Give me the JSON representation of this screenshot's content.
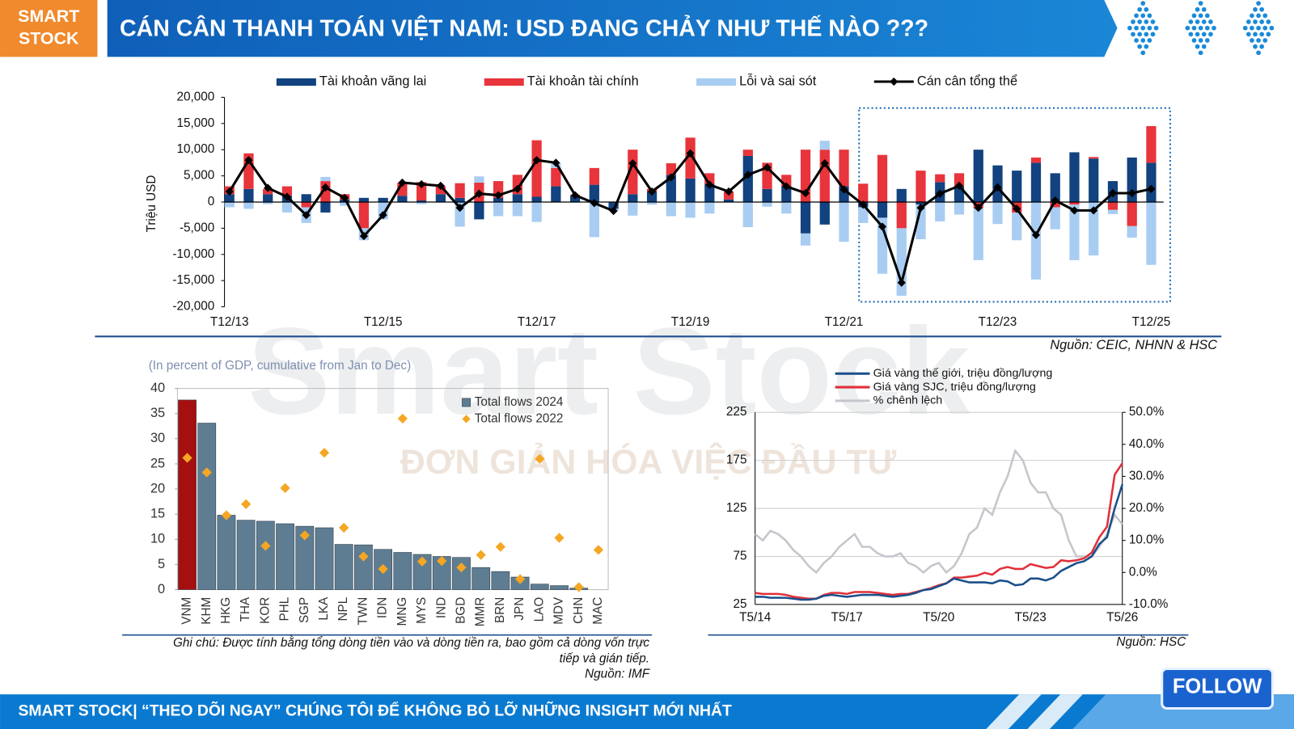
{
  "header": {
    "logo": [
      "SMART",
      "STOCK"
    ],
    "title": "CÁN CÂN THANH TOÁN VIỆT NAM: USD ĐANG CHẢY NHƯ THẾ NÀO ???"
  },
  "watermark": {
    "brand": "Smart Stock",
    "slogan": "ĐƠN GIẢN HÓA VIỆC ĐẦU TƯ"
  },
  "chart_data": [
    {
      "type": "bar",
      "stacked": true,
      "legend": "top",
      "y_label": "Triệu USD",
      "source": "Nguồn: CEIC, NHNN & HSC",
      "categories": [
        "T12/13",
        null,
        null,
        null,
        null,
        null,
        null,
        null,
        "T12/15",
        null,
        null,
        null,
        null,
        null,
        null,
        null,
        "T12/17",
        null,
        null,
        null,
        null,
        null,
        null,
        null,
        "T12/19",
        null,
        null,
        null,
        null,
        null,
        null,
        null,
        "T12/21",
        null,
        null,
        null,
        null,
        null,
        null,
        null,
        "T12/23",
        null,
        null,
        null,
        null,
        null,
        null,
        null,
        "T12/25"
      ],
      "ylim": [
        -20000,
        20000
      ],
      "yticks": [
        {
          "value": -20000,
          "label": "-20,000"
        },
        {
          "value": -15000,
          "label": "-15,000"
        },
        {
          "value": -10000,
          "label": "-10,000"
        },
        {
          "value": -5000,
          "label": "-5,000"
        },
        0,
        {
          "value": 5000,
          "label": "5,000"
        },
        {
          "value": 10000,
          "label": "10,000"
        },
        {
          "value": 15000,
          "label": "15,000"
        },
        {
          "value": 20000,
          "label": "20,000"
        }
      ],
      "series": [
        {
          "name": "Tài khoản vãng lai",
          "type": "bar",
          "color": "#12427f",
          "values": [
            1500,
            2500,
            1500,
            1200,
            1500,
            -2000,
            500,
            800,
            800,
            1200,
            300,
            1500,
            800,
            -3300,
            800,
            1500,
            1000,
            3000,
            1200,
            3300,
            -1300,
            1500,
            2000,
            5200,
            4500,
            3500,
            500,
            8800,
            2500,
            3000,
            -6000,
            -4300,
            3000,
            -1000,
            -3000,
            2500,
            -500,
            3800,
            3000,
            10000,
            7000,
            6000,
            7500,
            5500,
            9500,
            8300,
            4000,
            8500,
            7500
          ]
        },
        {
          "name": "Tài khoản tài chính",
          "type": "bar",
          "color": "#e8343b",
          "values": [
            1500,
            6800,
            1000,
            1800,
            -1000,
            4000,
            1000,
            -5000,
            0,
            2500,
            3500,
            1500,
            2800,
            3700,
            3200,
            3700,
            10800,
            3500,
            200,
            3200,
            0,
            8500,
            500,
            2200,
            7800,
            2000,
            1500,
            1200,
            5000,
            2200,
            10000,
            10000,
            7000,
            3500,
            9000,
            -5000,
            6000,
            1500,
            2500,
            -1200,
            0,
            -2000,
            1000,
            -1000,
            -500,
            300,
            -1500,
            -4600,
            7000
          ]
        },
        {
          "name": "Lỗi và sai sót",
          "type": "bar",
          "color": "#a9cdf2",
          "values": [
            -1000,
            -1300,
            -400,
            -2000,
            -3000,
            800,
            -700,
            -2300,
            -3300,
            0,
            -400,
            100,
            -4700,
            1200,
            -2700,
            -2700,
            -3800,
            1000,
            -100,
            -6700,
            -400,
            -2600,
            -500,
            -2700,
            -3000,
            -2200,
            0,
            -4800,
            -900,
            -2200,
            -2300,
            1700,
            -7600,
            -3000,
            -10700,
            -12900,
            -6600,
            -3700,
            -2400,
            -9900,
            -4200,
            -5300,
            -14800,
            -4200,
            -10600,
            -10200,
            -800,
            -2200,
            -12000
          ]
        },
        {
          "name": "Cán cân tổng thể",
          "type": "line",
          "color": "#000000",
          "values": [
            2000,
            8000,
            2700,
            1000,
            -2500,
            2800,
            800,
            -6500,
            -2500,
            3700,
            3400,
            3100,
            -1100,
            1600,
            1300,
            2500,
            8000,
            7500,
            1300,
            -200,
            -1700,
            7400,
            2000,
            4700,
            9300,
            3300,
            2000,
            5200,
            6600,
            3000,
            1700,
            7400,
            2400,
            -500,
            -4700,
            -15400,
            -1100,
            1600,
            3100,
            -1100,
            2800,
            -1300,
            -6300,
            300,
            -1600,
            -1600,
            1700,
            1700,
            2500
          ]
        }
      ]
    },
    {
      "type": "bar",
      "legend": "upper right",
      "subtitle": "(In percent of GDP, cumulative from Jan to Dec)",
      "note": [
        "Ghi chú: Được tính bằng tổng dòng tiền vào và dòng tiền ra, bao gồm cả dòng vốn trực",
        "tiếp và gián tiếp."
      ],
      "source": "Nguồn: IMF",
      "categories": [
        "VNM",
        "KHM",
        "HKG",
        "THA",
        "KOR",
        "PHL",
        "SGP",
        "LKA",
        "NPL",
        "TWN",
        "IDN",
        "MNG",
        "MYS",
        "IND",
        "BGD",
        "MMR",
        "BRN",
        "JPN",
        "LAO",
        "MDV",
        "CHN",
        "MAC"
      ],
      "ylim": [
        0,
        40
      ],
      "yticks": [
        0,
        5,
        10,
        15,
        20,
        25,
        30,
        35,
        40
      ],
      "series": [
        {
          "name": "Total flows 2024",
          "type": "bar",
          "color": "#5f7d92",
          "colors": [
            "#a50f0f",
            "#5f7d92",
            "#5f7d92",
            "#5f7d92",
            "#5f7d92",
            "#5f7d92",
            "#5f7d92",
            "#5f7d92",
            "#5f7d92",
            "#5f7d92",
            "#5f7d92",
            "#5f7d92",
            "#5f7d92",
            "#5f7d92",
            "#5f7d92",
            "#5f7d92",
            "#5f7d92",
            "#5f7d92",
            "#5f7d92",
            "#5f7d92",
            "#5f7d92",
            "#5f7d92"
          ],
          "values": [
            37.7,
            33.1,
            14.8,
            13.8,
            13.6,
            13.1,
            12.6,
            12.3,
            9,
            8.9,
            8,
            7.4,
            7,
            6.6,
            6.4,
            4.4,
            3.6,
            2.5,
            1.1,
            0.8,
            0.3,
            null
          ]
        },
        {
          "name": "Total flows 2022",
          "type": "scatter",
          "color": "#f5a623",
          "values": [
            26.2,
            23.3,
            14.8,
            17,
            8.7,
            20.2,
            10.8,
            27.2,
            12.3,
            6.6,
            4.1,
            34,
            5.6,
            5.7,
            4.4,
            6.9,
            8.5,
            2.1,
            26,
            10.3,
            0.5,
            7.9
          ]
        }
      ]
    },
    {
      "type": "line",
      "legend": "upper left",
      "grid": true,
      "source": "Nguồn: HSC",
      "categories": [
        "T5/14",
        null,
        null,
        null,
        null,
        null,
        null,
        null,
        null,
        null,
        null,
        null,
        "T5/17",
        null,
        null,
        null,
        null,
        null,
        null,
        null,
        null,
        null,
        null,
        null,
        "T5/20",
        null,
        null,
        null,
        null,
        null,
        null,
        null,
        null,
        null,
        null,
        null,
        "T5/23",
        null,
        null,
        null,
        null,
        null,
        null,
        null,
        null,
        null,
        null,
        null,
        "T5/26"
      ],
      "ylim": [
        25,
        225
      ],
      "yticks": [
        25,
        75,
        125,
        175,
        225
      ],
      "y2lim": [
        -10,
        50
      ],
      "y2ticks": [
        {
          "value": -10,
          "label": "-10.0%"
        },
        {
          "value": 0,
          "label": "0.0%"
        },
        {
          "value": 10,
          "label": "10.0%"
        },
        {
          "value": 20,
          "label": "20.0%"
        },
        {
          "value": 30,
          "label": "30.0%"
        },
        {
          "value": 40,
          "label": "40.0%"
        },
        {
          "value": 50,
          "label": "50.0%"
        }
      ],
      "series": [
        {
          "name": "Giá vàng thế giới, triệu đồng/lượng",
          "color": "#1a4f8b",
          "values": [
            33,
            33,
            32,
            32,
            32,
            31,
            30,
            30,
            31,
            34,
            35,
            34,
            33,
            34,
            35,
            35,
            35,
            34,
            33,
            34,
            35,
            37,
            40,
            41,
            44,
            47,
            52,
            50,
            48,
            48,
            48,
            47,
            50,
            49,
            45,
            46,
            52,
            52,
            50,
            53,
            60,
            64,
            68,
            70,
            75,
            88,
            95,
            125,
            150
          ]
        },
        {
          "name": "Giá vàng SJC, triệu đồng/lượng",
          "color": "#e0303a",
          "values": [
            37,
            36,
            36,
            36,
            35,
            33,
            32,
            31,
            31,
            35,
            37,
            37,
            36,
            38,
            38,
            38,
            37,
            36,
            35,
            36,
            36,
            38,
            40,
            42,
            45,
            47,
            53,
            53,
            54,
            55,
            58,
            56,
            62,
            64,
            62,
            62,
            67,
            65,
            63,
            64,
            71,
            70,
            71,
            73,
            79,
            95,
            106,
            160,
            172
          ]
        },
        {
          "name": "% chênh lệch",
          "color": "#c4c6cc",
          "axis": "y2",
          "values": [
            12,
            10,
            13,
            12,
            10,
            7,
            5,
            2,
            0,
            3,
            5,
            8,
            10,
            12,
            8,
            8,
            6,
            5,
            5,
            6,
            3,
            2,
            0,
            2,
            3,
            0,
            2,
            6,
            12,
            14,
            20,
            18,
            25,
            30,
            38,
            35,
            28,
            25,
            25,
            20,
            18,
            10,
            5,
            5,
            5,
            8,
            12,
            18,
            15
          ]
        }
      ]
    }
  ],
  "footer": {
    "text": "SMART STOCK| “THEO DÕI NGAY” CHÚNG TÔI ĐỂ KHÔNG BỎ LỠ NHỮNG INSIGHT MỚI NHẤT",
    "button": "FOLLOW"
  }
}
